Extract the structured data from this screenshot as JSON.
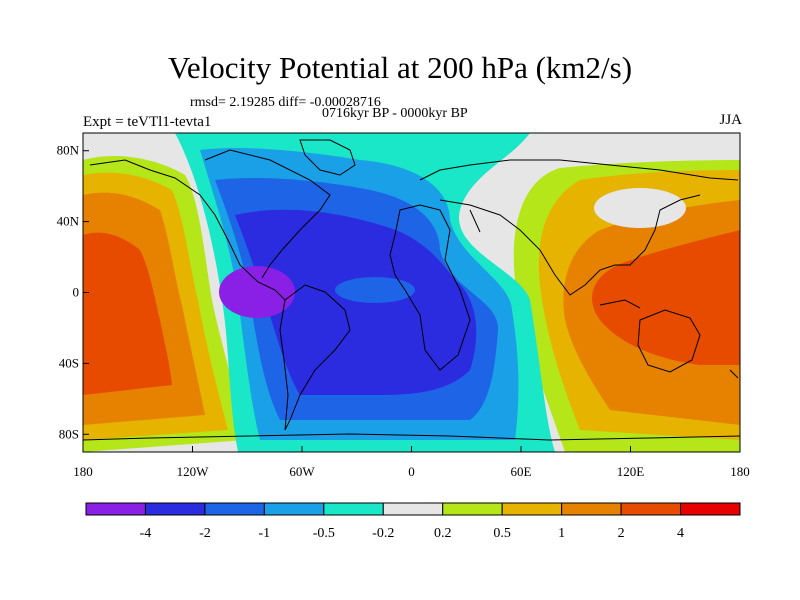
{
  "header": {
    "title": "Velocity Potential at 200 hPa (km2/s)",
    "stats": "rmsd= 2.19285 diff= -0.00028716",
    "period": "0716kyr BP - 0000kyr BP",
    "experiment": "Expt = teVTl1-tevta1",
    "season": "JJA"
  },
  "map": {
    "projection": "equirectangular",
    "lon_range": [
      -180,
      180
    ],
    "lat_range": [
      -90,
      90
    ],
    "lat_ticks": [
      {
        "value": 80,
        "label": "80N"
      },
      {
        "value": 40,
        "label": "40N"
      },
      {
        "value": 0,
        "label": "0"
      },
      {
        "value": -40,
        "label": "40S"
      },
      {
        "value": -80,
        "label": "80S"
      }
    ],
    "lon_ticks": [
      {
        "value": -180,
        "label": "180"
      },
      {
        "value": -120,
        "label": "120W"
      },
      {
        "value": -60,
        "label": "60W"
      },
      {
        "value": 0,
        "label": "0"
      },
      {
        "value": 60,
        "label": "60E"
      },
      {
        "value": 120,
        "label": "120E"
      },
      {
        "value": 180,
        "label": "180"
      }
    ]
  },
  "colorbar": {
    "levels": [
      "-4",
      "-2",
      "-1",
      "-0.5",
      "-0.2",
      "0.2",
      "0.5",
      "1",
      "2",
      "4"
    ],
    "colors": [
      "#8a1fe6",
      "#2b2be0",
      "#1e64e6",
      "#1aa0e6",
      "#1ae6c8",
      "#e6e6e6",
      "#b4e61a",
      "#e6b400",
      "#e68200",
      "#e64b00",
      "#e60000"
    ]
  }
}
